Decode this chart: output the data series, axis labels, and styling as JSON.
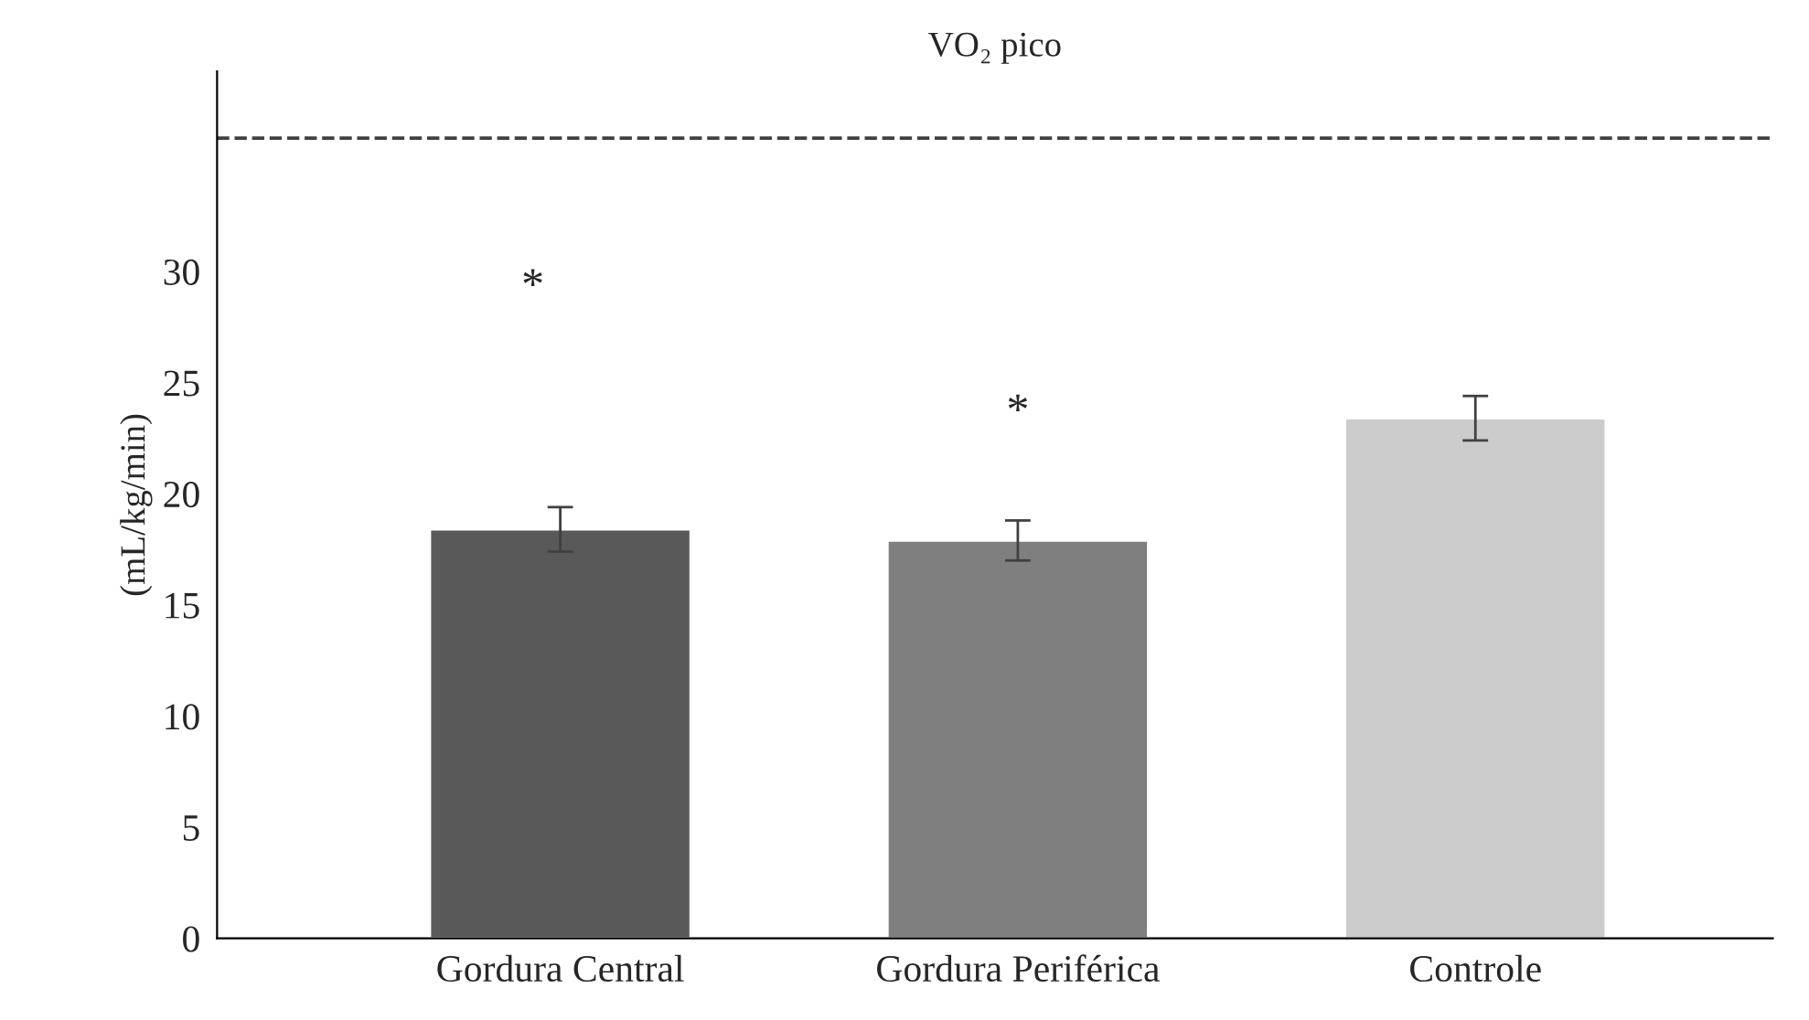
{
  "chart_data": {
    "type": "bar",
    "title": "VO₂ pico",
    "ylabel": "(mL/kg/min)",
    "categories": [
      "Gordura Central",
      "Gordura Periférica",
      "Controle"
    ],
    "values": [
      18.4,
      17.9,
      23.4
    ],
    "errors": [
      1.0,
      0.9,
      1.0
    ],
    "colors": [
      "#595959",
      "#7f7f7f",
      "#cccccc"
    ],
    "ylim": [
      0,
      39
    ],
    "yticks": [
      0,
      5,
      10,
      15,
      20,
      25,
      30
    ],
    "ref_lines": [
      {
        "axis": "y",
        "value": 36,
        "color": "#404040",
        "line_style": "dashed"
      }
    ],
    "annotations": [
      "*",
      "*"
    ],
    "grid": false,
    "legend": false
  }
}
